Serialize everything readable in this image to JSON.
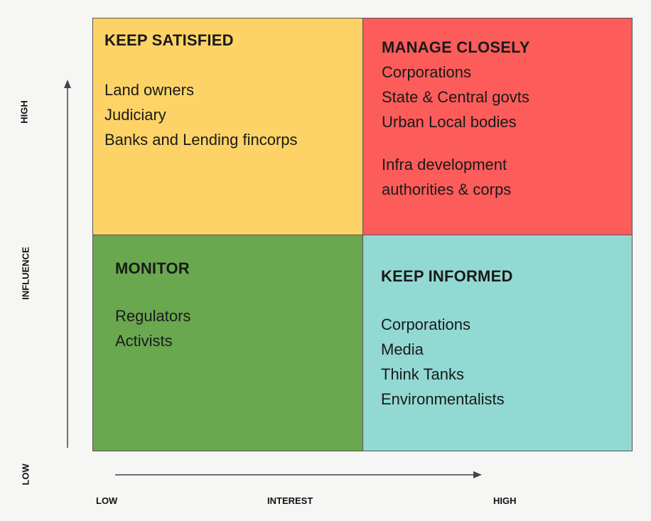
{
  "colors": {
    "keep_satisfied": "#fdd367",
    "manage_closely": "#fc5c5a",
    "monitor": "#6aa84f",
    "keep_informed": "#92d9d3",
    "border": "#555555",
    "background": "#f6f6f4"
  },
  "quadrants": {
    "keep_satisfied": {
      "title": "KEEP SATISFIED",
      "items": [
        "Land owners",
        "Judiciary",
        "Banks and Lending fincorps"
      ]
    },
    "manage_closely": {
      "title": "MANAGE CLOSELY",
      "items": [
        "Corporations",
        "State & Central govts",
        "Urban Local bodies"
      ],
      "items2": [
        "Infra development",
        "authorities & corps"
      ]
    },
    "monitor": {
      "title": "MONITOR",
      "items": [
        "Regulators",
        "Activists"
      ]
    },
    "keep_informed": {
      "title": "KEEP INFORMED",
      "items": [
        "Corporations",
        "Media",
        "Think Tanks",
        "Environmentalists"
      ]
    }
  },
  "axes": {
    "y_high": "HIGH",
    "y_title": "INFLUENCE",
    "y_low": "LOW",
    "x_low": "LOW",
    "x_title": "INTEREST",
    "x_high": "HIGH"
  }
}
